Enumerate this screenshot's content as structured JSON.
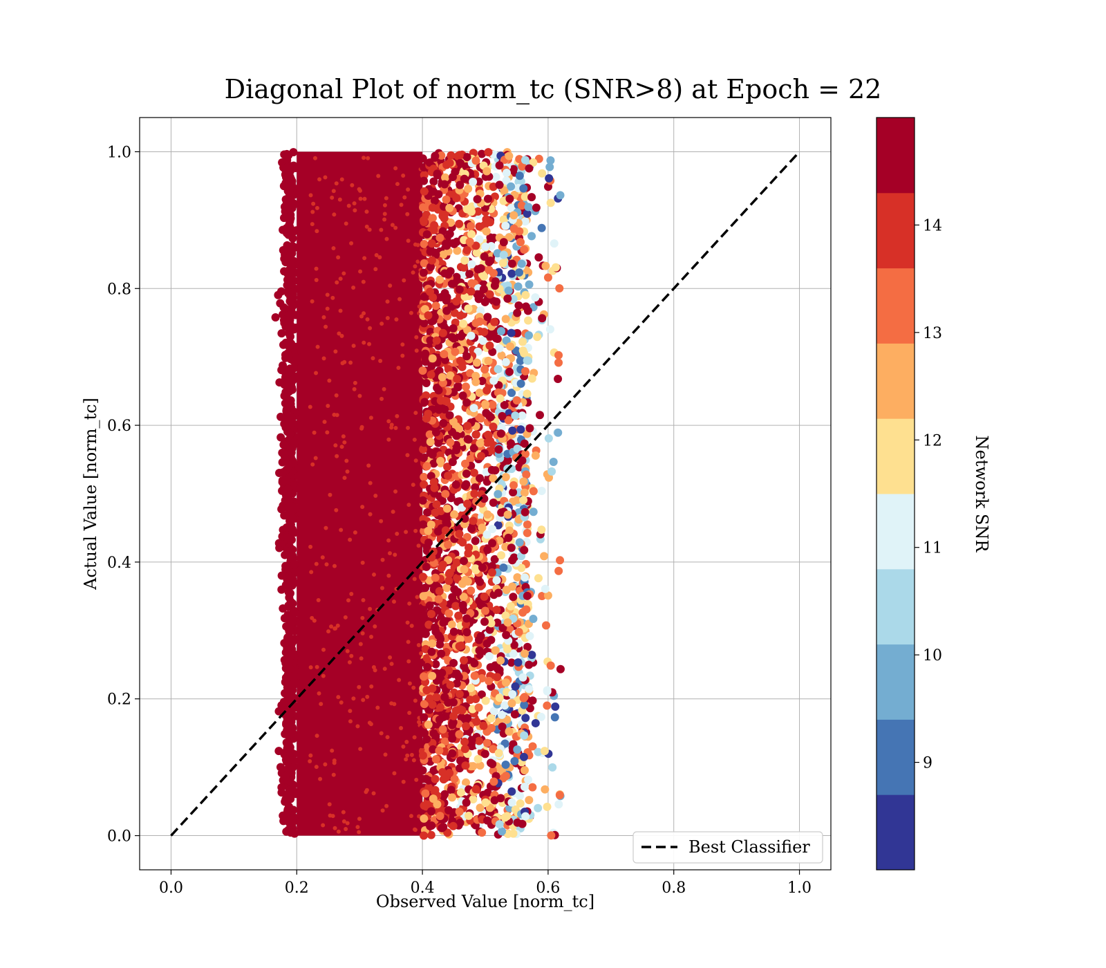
{
  "chart_data": {
    "type": "scatter",
    "title": "Diagonal Plot of norm_tc (SNR>8) at Epoch = 22",
    "xlabel": "Observed Value [norm_tc]",
    "ylabel": "Actual Value [norm_tc]",
    "xlim": [
      -0.05,
      1.05
    ],
    "ylim": [
      -0.05,
      1.05
    ],
    "xticks": [
      "0.0",
      "0.2",
      "0.4",
      "0.6",
      "0.8",
      "1.0"
    ],
    "yticks": [
      "0.0",
      "0.2",
      "0.4",
      "0.6",
      "0.8",
      "1.0"
    ],
    "grid": true,
    "scatter_region": {
      "x_min": 0.15,
      "x_max": 0.62,
      "dense_core_x": [
        0.2,
        0.4
      ],
      "y_range": [
        0.0,
        1.0
      ],
      "color_trend": "high SNR (dark red) concentrated at low x; lower SNR (yellow/blue) toward x = 0.5-0.57"
    },
    "reference_line": {
      "label": "Best Classifier",
      "x": [
        0.0,
        1.0
      ],
      "y": [
        0.0,
        1.0
      ],
      "style": "dashed",
      "color": "#000000"
    },
    "legend": {
      "entries": [
        "Best Classifier"
      ],
      "placement": "lower-right"
    },
    "colorbar": {
      "label": "Network SNR",
      "range": [
        8,
        15
      ],
      "ticks": [
        "9",
        "10",
        "11",
        "12",
        "13",
        "14"
      ],
      "bins": [
        "#313695",
        "#4575b4",
        "#74add1",
        "#abd9e9",
        "#e0f3f8",
        "#fee090",
        "#fdae61",
        "#f46d43",
        "#d73027",
        "#a50026"
      ]
    }
  }
}
